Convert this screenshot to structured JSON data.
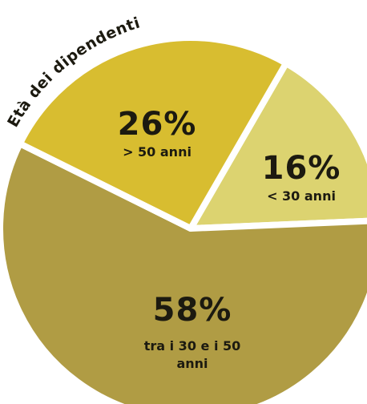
{
  "chart_data": {
    "type": "pie",
    "title": "Età dei dipendenti",
    "categories": [
      "< 30 anni",
      "tra i 30 e i 50 anni",
      "> 50 anni"
    ],
    "values": [
      16,
      58,
      26
    ],
    "value_labels": [
      "16%",
      "58%",
      "26%"
    ],
    "colors": [
      "#dcd370",
      "#b09c44",
      "#d8bd30"
    ]
  }
}
